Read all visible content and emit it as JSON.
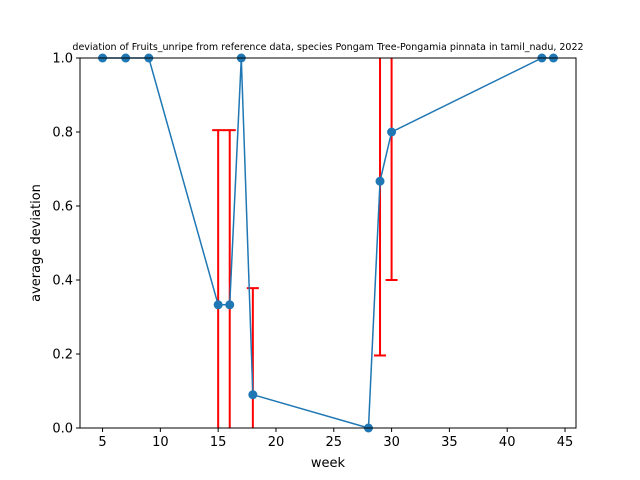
{
  "chart_data": {
    "type": "line",
    "title": "deviation of Fruits_unripe from reference data, species Pongam Tree-Pongamia pinnata in tamil_nadu, 2022",
    "xlabel": "week",
    "ylabel": "average deviation",
    "xlim": [
      3.05,
      45.95
    ],
    "ylim": [
      0,
      1
    ],
    "xticks": [
      5,
      10,
      15,
      20,
      25,
      30,
      35,
      40,
      45
    ],
    "yticks": [
      0.0,
      0.2,
      0.4,
      0.6,
      0.8,
      1.0
    ],
    "grid": false,
    "line_color": "#1f77b4",
    "error_color": "#ff0000",
    "series": [
      {
        "x": [
          5,
          7,
          9,
          15,
          16,
          17,
          18,
          28,
          29,
          30,
          43,
          44
        ],
        "y": [
          1.0,
          1.0,
          1.0,
          0.333,
          0.333,
          1.0,
          0.09,
          0.0,
          0.667,
          0.8,
          1.0,
          1.0
        ],
        "error": [
          null,
          null,
          null,
          [
            0,
            0.805
          ],
          [
            0,
            0.805
          ],
          null,
          [
            0,
            0.378
          ],
          null,
          [
            0.196,
            1.0
          ],
          [
            0.4,
            1.0
          ],
          null,
          null
        ]
      }
    ]
  }
}
